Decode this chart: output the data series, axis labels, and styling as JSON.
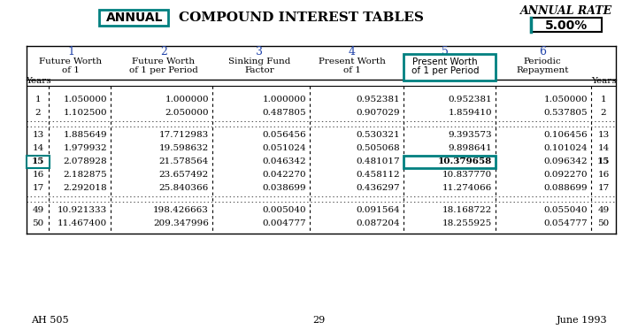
{
  "title": "COMPOUND INTEREST TABLES",
  "annual_label": "ANNUAL",
  "annual_rate_label": "ANNUAL RATE",
  "annual_rate_value": "5.00%",
  "col_numbers": [
    "1",
    "2",
    "3",
    "4",
    "5",
    "6"
  ],
  "col_headers": [
    [
      "Future Worth",
      "of 1"
    ],
    [
      "Future Worth",
      "of 1 per Period"
    ],
    [
      "Sinking Fund",
      "Factor"
    ],
    [
      "Present Worth",
      "of 1"
    ],
    [
      "Present Worth",
      "of 1 per Period"
    ],
    [
      "Periodic",
      "Repayment"
    ]
  ],
  "years_label": "Years",
  "rows": [
    [
      1,
      "1.050000",
      "1.000000",
      "1.000000",
      "0.952381",
      "0.952381",
      "1.050000"
    ],
    [
      2,
      "1.102500",
      "2.050000",
      "0.487805",
      "0.907029",
      "1.859410",
      "0.537805"
    ],
    [
      13,
      "1.885649",
      "17.712983",
      "0.056456",
      "0.530321",
      "9.393573",
      "0.106456"
    ],
    [
      14,
      "1.979932",
      "19.598632",
      "0.051024",
      "0.505068",
      "9.898641",
      "0.101024"
    ],
    [
      15,
      "2.078928",
      "21.578564",
      "0.046342",
      "0.481017",
      "10.379658",
      "0.096342"
    ],
    [
      16,
      "2.182875",
      "23.657492",
      "0.042270",
      "0.458112",
      "10.837770",
      "0.092270"
    ],
    [
      17,
      "2.292018",
      "25.840366",
      "0.038699",
      "0.436297",
      "11.274066",
      "0.088699"
    ],
    [
      49,
      "10.921333",
      "198.426663",
      "0.005040",
      "0.091564",
      "18.168722",
      "0.055040"
    ],
    [
      50,
      "11.467400",
      "209.347996",
      "0.004777",
      "0.087204",
      "18.255925",
      "0.054777"
    ]
  ],
  "highlight_row": 15,
  "highlight_col": 5,
  "teal_color": "#008080",
  "footer_left": "AH 505",
  "footer_center": "29",
  "footer_right": "June 1993",
  "bg_color": "#ffffff"
}
